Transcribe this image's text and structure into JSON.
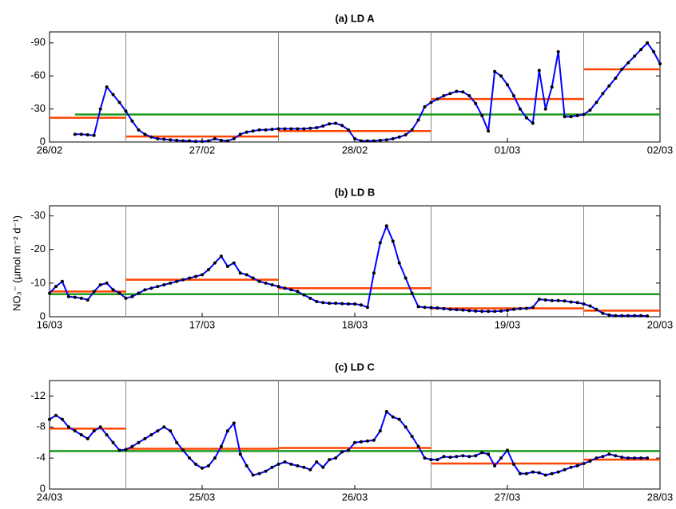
{
  "y_label": "NO₃⁻ (µmol m⁻² d⁻¹)",
  "chart_data": [
    {
      "type": "line",
      "title": "(a)  LD A",
      "xlim": [
        0,
        96
      ],
      "xticks": [
        {
          "value": 0,
          "label": "26/02"
        },
        {
          "value": 24,
          "label": "27/02"
        },
        {
          "value": 48,
          "label": "28/02"
        },
        {
          "value": 72,
          "label": "01/03"
        },
        {
          "value": 96,
          "label": "02/03"
        }
      ],
      "ylim": [
        0,
        -100
      ],
      "yticks": [
        0,
        -30,
        -60,
        -90
      ],
      "dividers": [
        12,
        36,
        60,
        84
      ],
      "series": [
        {
          "color": "#0000ff",
          "marker_color": "#000000",
          "x": [
            4,
            5,
            6,
            7,
            8,
            9,
            10,
            11,
            12,
            13,
            14,
            15,
            16,
            17,
            18,
            19,
            20,
            21,
            22,
            23,
            24,
            25,
            26,
            27,
            28,
            29,
            30,
            31,
            32,
            33,
            34,
            35,
            36,
            37,
            38,
            39,
            40,
            41,
            42,
            43,
            44,
            45,
            46,
            47,
            48,
            49,
            50,
            51,
            52,
            53,
            54,
            55,
            56,
            57,
            58,
            59,
            60,
            61,
            62,
            63,
            64,
            65,
            66,
            67,
            68,
            69,
            70,
            71,
            72,
            73,
            74,
            75,
            76,
            77,
            78,
            79,
            80,
            81,
            82,
            83,
            84,
            85,
            86,
            87,
            88,
            89,
            90,
            91,
            92,
            93,
            94,
            95,
            96
          ],
          "values": [
            -7,
            -7,
            -6.5,
            -6,
            -30,
            -50,
            -43,
            -36,
            -28,
            -19,
            -11,
            -7,
            -4.5,
            -3,
            -2.5,
            -2,
            -1.5,
            -1,
            -1,
            -0.5,
            -0.5,
            -1,
            -3,
            -1.5,
            -1,
            -3,
            -7,
            -9,
            -10,
            -11,
            -11,
            -11.5,
            -12,
            -12,
            -12,
            -12,
            -12,
            -12.5,
            -13,
            -14.5,
            -16.5,
            -17,
            -15,
            -11,
            -3,
            -1,
            -1,
            -1,
            -1.5,
            -2,
            -3,
            -4.5,
            -6.5,
            -11,
            -20,
            -32,
            -36,
            -39,
            -42,
            -44,
            -46,
            -45.5,
            -42,
            -35,
            -24,
            -10,
            -64,
            -60,
            -52,
            -42,
            -30,
            -22,
            -17,
            -65,
            -30,
            -50,
            -82,
            -23,
            -23,
            -24,
            -25,
            -29,
            -36,
            -44,
            -51,
            -58,
            -66,
            -72,
            -78,
            -84,
            -90,
            -82,
            -71
          ]
        }
      ],
      "daily_means": {
        "color": "#ff4500",
        "values": [
          -22,
          -5,
          -10,
          -39,
          -66
        ]
      },
      "overall_mean": {
        "color": "#1f9a1f",
        "value": -25
      }
    },
    {
      "type": "line",
      "title": "(b)  LD B",
      "xlim": [
        0,
        96
      ],
      "xticks": [
        {
          "value": 0,
          "label": "16/03"
        },
        {
          "value": 24,
          "label": "17/03"
        },
        {
          "value": 48,
          "label": "18/03"
        },
        {
          "value": 72,
          "label": "19/03"
        },
        {
          "value": 96,
          "label": "20/03"
        }
      ],
      "ylim": [
        0,
        -33
      ],
      "yticks": [
        0,
        -10,
        -20,
        -30
      ],
      "dividers": [
        12,
        36,
        60,
        84
      ],
      "series": [
        {
          "color": "#0000ff",
          "marker_color": "#000000",
          "x": [
            0,
            1,
            2,
            3,
            4,
            5,
            6,
            7,
            8,
            9,
            10,
            11,
            12,
            13,
            14,
            15,
            16,
            17,
            18,
            19,
            20,
            21,
            22,
            23,
            24,
            25,
            26,
            27,
            28,
            29,
            30,
            31,
            32,
            33,
            34,
            35,
            36,
            37,
            38,
            39,
            40,
            41,
            42,
            43,
            44,
            45,
            46,
            47,
            48,
            49,
            50,
            51,
            52,
            53,
            54,
            55,
            56,
            57,
            58,
            59,
            60,
            61,
            62,
            63,
            64,
            65,
            66,
            67,
            68,
            69,
            70,
            71,
            72,
            73,
            74,
            75,
            76,
            77,
            78,
            79,
            80,
            81,
            82,
            83,
            84,
            85,
            86,
            87,
            88,
            89,
            90,
            91,
            92,
            93,
            94
          ],
          "values": [
            -7,
            -9,
            -10.5,
            -6,
            -5.8,
            -5.5,
            -5,
            -7.5,
            -9.5,
            -10,
            -8,
            -7,
            -5.5,
            -6,
            -7,
            -8,
            -8.5,
            -9,
            -9.5,
            -10,
            -10.5,
            -11,
            -11.5,
            -12,
            -12.5,
            -14,
            -16,
            -18,
            -15,
            -16,
            -13,
            -12.5,
            -11.5,
            -10.5,
            -10,
            -9.5,
            -9,
            -8.5,
            -8,
            -7.5,
            -6.5,
            -5.5,
            -4.5,
            -4.2,
            -4,
            -4,
            -3.9,
            -3.8,
            -3.8,
            -3.5,
            -2.8,
            -13,
            -22,
            -27,
            -22.5,
            -16,
            -11.5,
            -7,
            -3,
            -2.8,
            -2.7,
            -2.6,
            -2.4,
            -2.2,
            -2.1,
            -2,
            -1.8,
            -1.7,
            -1.6,
            -1.6,
            -1.6,
            -1.7,
            -1.9,
            -2.2,
            -2.4,
            -2.5,
            -2.8,
            -5.2,
            -5,
            -4.8,
            -4.8,
            -4.7,
            -4.4,
            -4.2,
            -3.8,
            -3.2,
            -2.2,
            -1,
            -0.5,
            -0.3,
            -0.3,
            -0.3,
            -0.3,
            -0.3,
            -0.2
          ]
        }
      ],
      "daily_means": {
        "color": "#ff4500",
        "values": [
          -7.5,
          -11,
          -8.5,
          -2.5,
          -1.8
        ]
      },
      "overall_mean": {
        "color": "#1f9a1f",
        "value": -6.7
      }
    },
    {
      "type": "line",
      "title": "(c)  LD C",
      "xlim": [
        0,
        96
      ],
      "xticks": [
        {
          "value": 0,
          "label": "24/03"
        },
        {
          "value": 24,
          "label": "25/03"
        },
        {
          "value": 48,
          "label": "26/03"
        },
        {
          "value": 72,
          "label": "27/03"
        },
        {
          "value": 96,
          "label": "28/03"
        }
      ],
      "ylim": [
        0,
        -14
      ],
      "yticks": [
        0,
        -4,
        -8,
        -12
      ],
      "dividers": [
        12,
        36,
        60,
        84
      ],
      "series": [
        {
          "color": "#0000ff",
          "marker_color": "#000000",
          "x": [
            0,
            1,
            2,
            3,
            4,
            5,
            6,
            7,
            8,
            9,
            10,
            11,
            12,
            13,
            14,
            15,
            16,
            17,
            18,
            19,
            20,
            21,
            22,
            23,
            24,
            25,
            26,
            27,
            28,
            29,
            30,
            31,
            32,
            33,
            34,
            35,
            36,
            37,
            38,
            39,
            40,
            41,
            42,
            43,
            44,
            45,
            46,
            47,
            48,
            49,
            50,
            51,
            52,
            53,
            54,
            55,
            56,
            57,
            58,
            59,
            60,
            61,
            62,
            63,
            64,
            65,
            66,
            67,
            68,
            69,
            70,
            71,
            72,
            73,
            74,
            75,
            76,
            77,
            78,
            79,
            80,
            81,
            82,
            83,
            84,
            85,
            86,
            87,
            88,
            89,
            90,
            91,
            92,
            93,
            94
          ],
          "values": [
            -9,
            -9.5,
            -9,
            -8,
            -7.5,
            -7,
            -6.5,
            -7.5,
            -8,
            -7,
            -6,
            -5,
            -5.1,
            -5.5,
            -6,
            -6.5,
            -7,
            -7.5,
            -8,
            -7.5,
            -6,
            -5,
            -4,
            -3.2,
            -2.7,
            -3,
            -4,
            -5.5,
            -7.5,
            -8.5,
            -4.5,
            -3,
            -1.8,
            -2,
            -2.3,
            -2.8,
            -3.2,
            -3.5,
            -3.2,
            -3,
            -2.8,
            -2.5,
            -3.5,
            -2.8,
            -3.8,
            -4,
            -4.8,
            -5,
            -6,
            -6.1,
            -6.2,
            -6.3,
            -7.5,
            -10,
            -9.3,
            -9,
            -8,
            -6.8,
            -5.5,
            -4,
            -3.8,
            -3.8,
            -4.2,
            -4.1,
            -4.2,
            -4.3,
            -4.2,
            -4.3,
            -4.7,
            -4.5,
            -3,
            -4,
            -5,
            -3.2,
            -2,
            -2,
            -2.2,
            -2.1,
            -1.8,
            -2,
            -2.2,
            -2.5,
            -2.8,
            -3,
            -3.3,
            -3.6,
            -4,
            -4.2,
            -4.5,
            -4.3,
            -4.1,
            -4,
            -4,
            -4,
            -4
          ]
        }
      ],
      "daily_means": {
        "color": "#ff4500",
        "values": [
          -7.8,
          -5.2,
          -5.3,
          -3.3,
          -3.8
        ]
      },
      "overall_mean": {
        "color": "#1f9a1f",
        "value": -4.9
      }
    }
  ]
}
